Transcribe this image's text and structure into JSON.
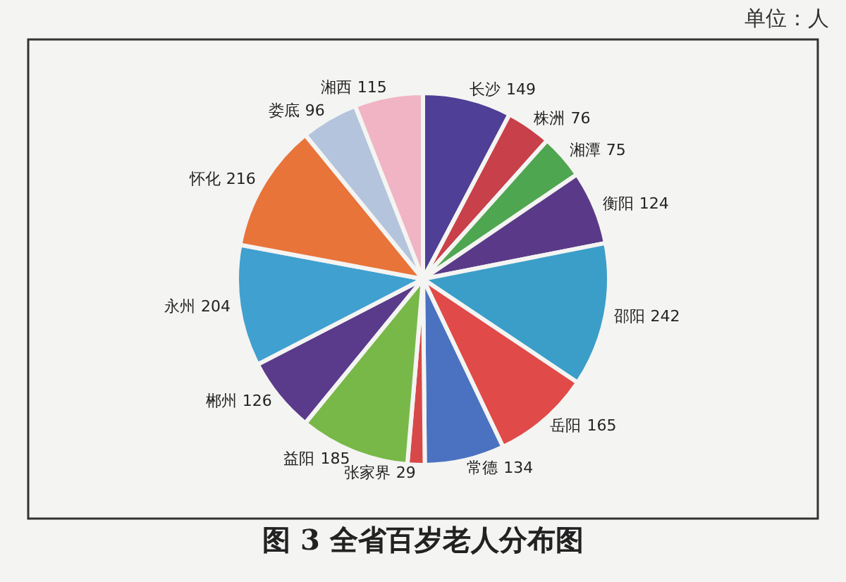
{
  "chart_data": {
    "type": "pie",
    "title": "图 3 全省百岁老人分布图",
    "annotations": [
      "单位：人"
    ],
    "categories": [
      "长沙",
      "株洲",
      "湘潭",
      "衡阳",
      "邵阳",
      "岳阳",
      "常德",
      "张家界",
      "益阳",
      "郴州",
      "永州",
      "怀化",
      "娄底",
      "湘西"
    ],
    "values": [
      149,
      76,
      75,
      124,
      242,
      165,
      134,
      29,
      185,
      126,
      204,
      216,
      96,
      115
    ],
    "colors": [
      "#4f3f96",
      "#c8404a",
      "#4fa650",
      "#5a3a88",
      "#3a9ec8",
      "#e04a48",
      "#4a72c0",
      "#d84848",
      "#78b848",
      "#5a3a8a",
      "#40a0d0",
      "#e8743a",
      "#b4c4dc",
      "#f0b4c4"
    ],
    "data_labels": true,
    "legend": false
  }
}
